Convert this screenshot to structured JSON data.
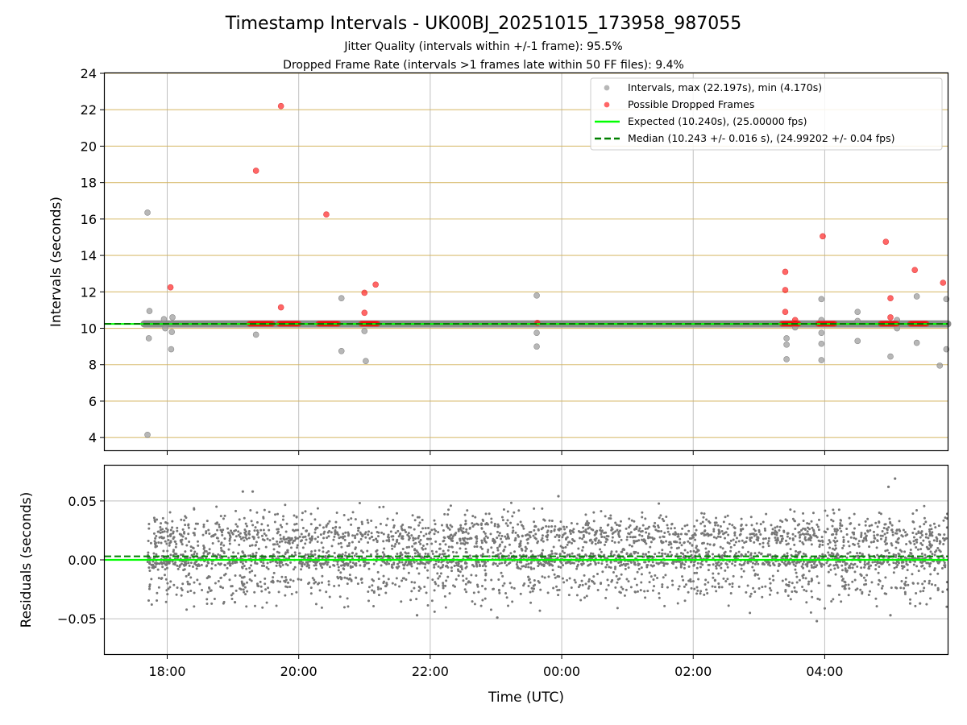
{
  "chart_data": [
    {
      "type": "scatter",
      "title": "Timestamp Intervals - UK00BJ_20251015_173958_987055",
      "subtitle_lines": [
        "Jitter Quality (intervals within +/-1 frame): 95.5%",
        "Dropped Frame Rate (intervals >1 frames late within 50 FF files): 9.4%"
      ],
      "ylabel": "Intervals (seconds)",
      "x_unit": "hours since 00:00 UTC (negative = previous day)",
      "xlim": [
        -6.95,
        5.87
      ],
      "ylim": [
        3.3,
        24
      ],
      "yticks": [
        4,
        6,
        8,
        10,
        12,
        14,
        16,
        18,
        20,
        22,
        24
      ],
      "ytick_labels": [
        "4",
        "6",
        "8",
        "10",
        "12",
        "14",
        "16",
        "18",
        "20",
        "22",
        "24"
      ],
      "grid": "y major lines in goldenrod, x major lines in gray",
      "legend_position": "upper right",
      "legend": [
        "Intervals, max (22.197s), min (4.170s)",
        "Possible Dropped Frames",
        "Expected (10.240s), (25.00000 fps)",
        "Median (10.243 +/- 0.016 s), (24.99202 +/- 0.04 fps)"
      ],
      "expected": 10.24,
      "median": 10.243,
      "baseline_band": {
        "x": [
          -6.35,
          5.87
        ],
        "y": 10.24
      },
      "series": [
        {
          "name": "Intervals",
          "color": "#999999",
          "points": [
            [
              -6.3,
              16.35
            ],
            [
              -6.3,
              4.15
            ],
            [
              -6.27,
              10.95
            ],
            [
              -6.28,
              9.45
            ],
            [
              -6.05,
              10.5
            ],
            [
              -6.03,
              10.0
            ],
            [
              -5.92,
              10.6
            ],
            [
              -5.93,
              9.8
            ],
            [
              -5.94,
              8.85
            ],
            [
              -4.65,
              9.65
            ],
            [
              -3.35,
              11.65
            ],
            [
              -3.35,
              8.75
            ],
            [
              -3.0,
              9.85
            ],
            [
              -2.98,
              8.2
            ],
            [
              -0.38,
              11.8
            ],
            [
              -0.38,
              9.75
            ],
            [
              -0.38,
              9.0
            ],
            [
              3.42,
              9.45
            ],
            [
              3.42,
              9.1
            ],
            [
              3.42,
              8.3
            ],
            [
              3.55,
              10.05
            ],
            [
              3.95,
              11.6
            ],
            [
              3.95,
              10.45
            ],
            [
              3.95,
              9.75
            ],
            [
              3.95,
              9.15
            ],
            [
              3.95,
              8.25
            ],
            [
              4.5,
              10.9
            ],
            [
              4.5,
              10.4
            ],
            [
              4.5,
              9.3
            ],
            [
              5.0,
              8.45
            ],
            [
              5.4,
              11.75
            ],
            [
              5.4,
              9.2
            ],
            [
              5.1,
              10.45
            ],
            [
              5.1,
              10.0
            ],
            [
              5.75,
              7.95
            ],
            [
              5.85,
              11.6
            ],
            [
              5.85,
              8.85
            ]
          ]
        },
        {
          "name": "Possible Dropped Frames",
          "color": "#ff0000",
          "points": [
            [
              -5.95,
              12.25
            ],
            [
              -4.65,
              18.65
            ],
            [
              -4.27,
              22.2
            ],
            [
              -4.27,
              11.15
            ],
            [
              -3.58,
              16.25
            ],
            [
              -3.0,
              11.95
            ],
            [
              -3.0,
              10.85
            ],
            [
              -2.83,
              12.4
            ],
            [
              -0.37,
              10.3
            ],
            [
              3.4,
              13.1
            ],
            [
              3.4,
              12.1
            ],
            [
              3.4,
              10.9
            ],
            [
              3.55,
              10.45
            ],
            [
              3.97,
              15.05
            ],
            [
              4.93,
              14.75
            ],
            [
              5.0,
              11.65
            ],
            [
              5.0,
              10.6
            ],
            [
              5.37,
              13.2
            ],
            [
              5.8,
              12.5
            ]
          ],
          "clusters": [
            [
              -4.75,
              -4.4
            ],
            [
              -4.3,
              -4.0
            ],
            [
              -3.7,
              -3.4
            ],
            [
              -3.05,
              -2.8
            ],
            [
              3.35,
              3.6
            ],
            [
              3.9,
              4.15
            ],
            [
              4.85,
              5.1
            ],
            [
              5.3,
              5.55
            ]
          ],
          "cluster_y": 10.25
        }
      ]
    },
    {
      "type": "scatter",
      "ylabel": "Residuals (seconds)",
      "xlabel": "Time (UTC)",
      "xlim": [
        -6.95,
        5.87
      ],
      "ylim": [
        -0.08,
        0.08
      ],
      "yticks": [
        -0.05,
        0.0,
        0.05
      ],
      "ytick_labels": [
        "−0.05",
        "0.00",
        "0.05"
      ],
      "xticks": [
        -6,
        -4,
        -2,
        0,
        2,
        4
      ],
      "xtick_labels": [
        "18:00",
        "20:00",
        "22:00",
        "00:00",
        "02:00",
        "04:00"
      ],
      "grid": "both axes, light gray",
      "expected_residual": 0.0,
      "median_residual": 0.003,
      "series": [
        {
          "name": "Residuals",
          "color": "#777777",
          "x_range": [
            -6.3,
            5.87
          ],
          "clusters": [
            {
              "center": 0.02,
              "spread": 0.006,
              "share": 0.34
            },
            {
              "center": 0.0,
              "spread": 0.004,
              "share": 0.44
            },
            {
              "center": -0.02,
              "spread": 0.005,
              "share": 0.14
            },
            {
              "center": 0.035,
              "spread": 0.006,
              "share": 0.05
            },
            {
              "center": -0.035,
              "spread": 0.005,
              "share": 0.03
            }
          ],
          "count": 3800,
          "outliers": [
            [
              -4.85,
              0.058
            ],
            [
              -4.7,
              0.058
            ],
            [
              -0.05,
              0.054
            ],
            [
              4.97,
              0.062
            ],
            [
              5.07,
              0.069
            ],
            [
              -2.2,
              -0.047
            ],
            [
              -0.98,
              -0.049
            ],
            [
              3.88,
              -0.052
            ],
            [
              5.0,
              -0.047
            ],
            [
              5.3,
              -0.037
            ],
            [
              5.45,
              -0.037
            ],
            [
              -4.97,
              -0.036
            ]
          ]
        }
      ]
    }
  ]
}
